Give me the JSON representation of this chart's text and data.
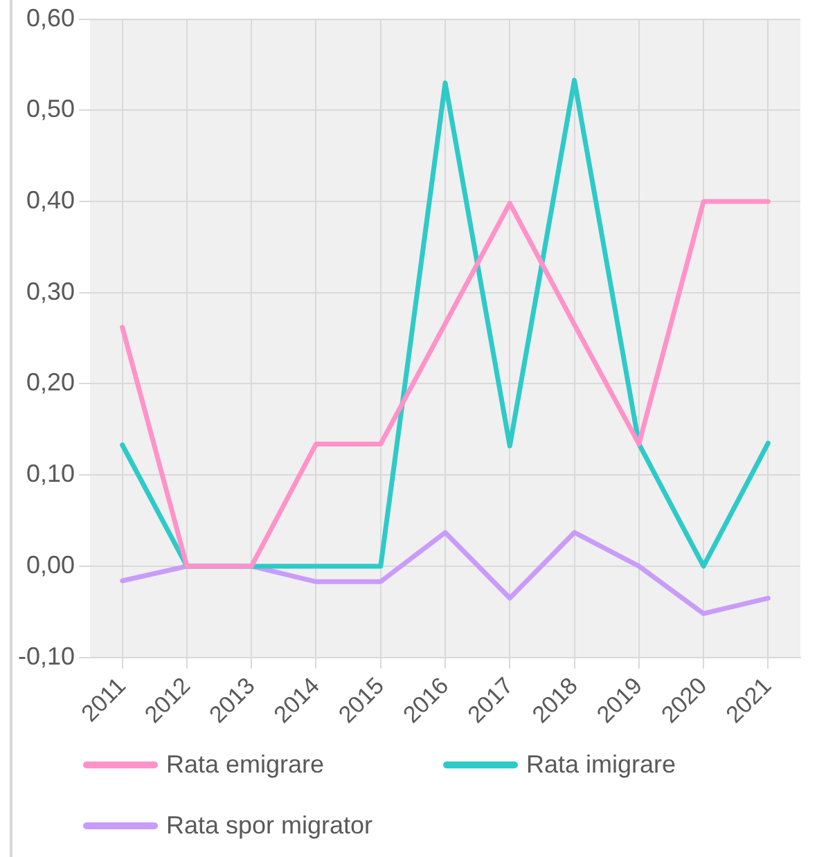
{
  "chart_data": {
    "type": "line",
    "categories": [
      "2011",
      "2012",
      "2013",
      "2014",
      "2015",
      "2016",
      "2017",
      "2018",
      "2019",
      "2020",
      "2021"
    ],
    "series": [
      {
        "name": "Rata emigrare",
        "color": "#ff93c9",
        "values": [
          0.262,
          0,
          0,
          0.134,
          0.134,
          0.266,
          0.398,
          0.265,
          0.134,
          0.4,
          0.4
        ]
      },
      {
        "name": "Rata imigrare",
        "color": "#2ecac8",
        "values": [
          0.133,
          0,
          0,
          0,
          0,
          0.53,
          0.132,
          0.533,
          0.134,
          0,
          0.135
        ]
      },
      {
        "name": "Rata spor migrator",
        "color": "#c99cf9",
        "values": [
          -0.016,
          0,
          0,
          -0.017,
          -0.017,
          0.037,
          -0.035,
          0.037,
          0,
          -0.052,
          -0.035
        ]
      }
    ],
    "ylim": [
      -0.1,
      0.6
    ],
    "yticks": [
      {
        "value": -0.1,
        "label": "-0,10"
      },
      {
        "value": 0,
        "label": "0,00"
      },
      {
        "value": 0.1,
        "label": "0,10"
      },
      {
        "value": 0.2,
        "label": "0,20"
      },
      {
        "value": 0.3,
        "label": "0,30"
      },
      {
        "value": 0.4,
        "label": "0,40"
      },
      {
        "value": 0.5,
        "label": "0,50"
      },
      {
        "value": 0.6,
        "label": "0,60"
      }
    ],
    "grid": true,
    "legend": "bottom",
    "marker": "none",
    "line_style": "solid"
  }
}
